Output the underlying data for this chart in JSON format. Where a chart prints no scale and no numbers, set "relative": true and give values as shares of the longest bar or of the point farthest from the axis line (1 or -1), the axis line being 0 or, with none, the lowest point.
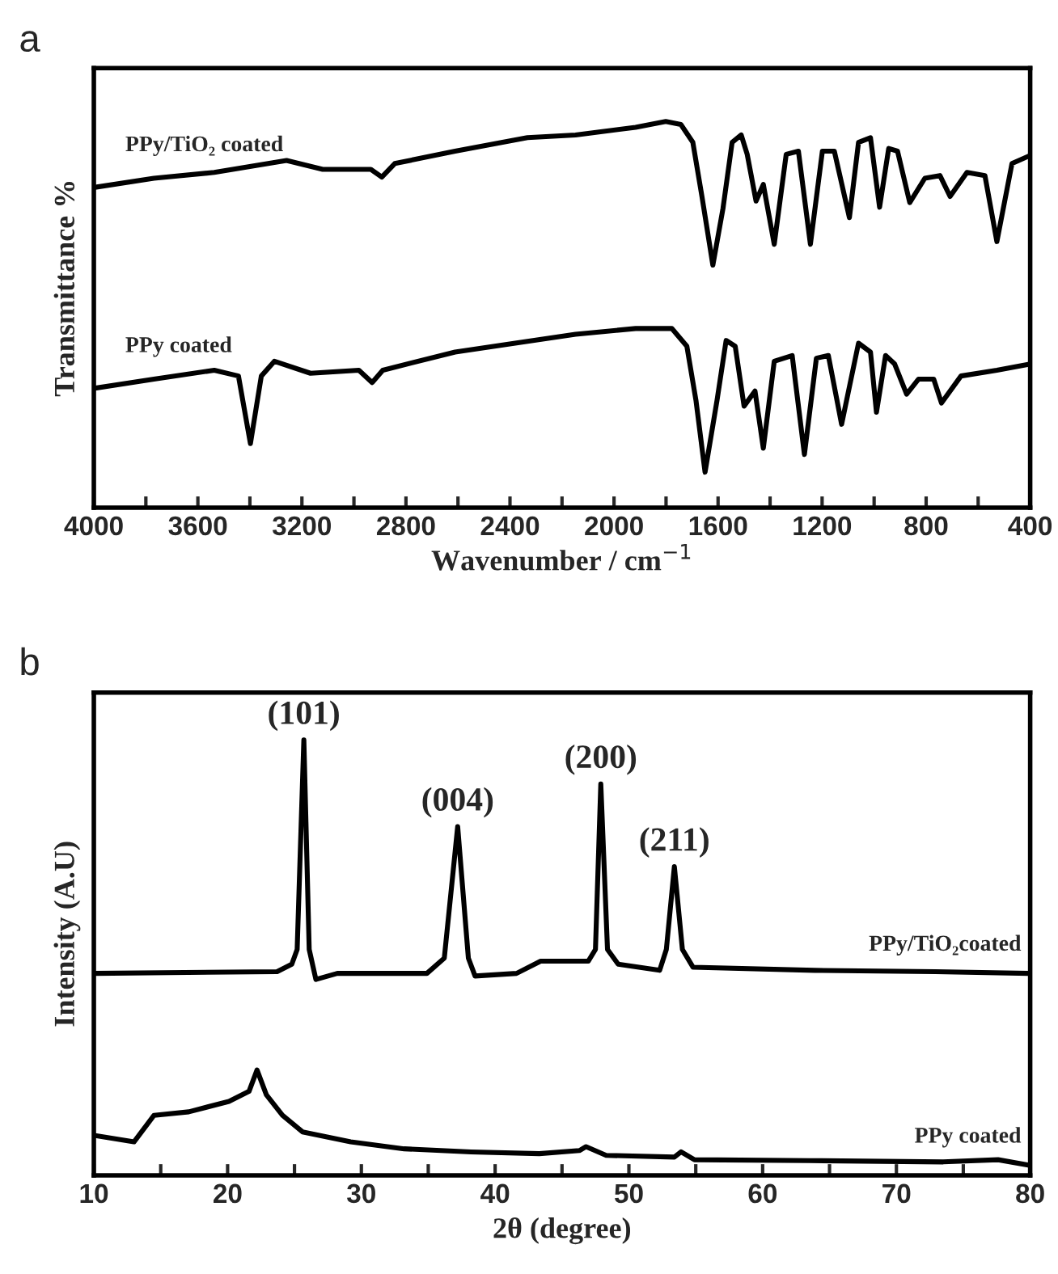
{
  "chart_data": [
    {
      "type": "line",
      "title": "a",
      "xlabel": "Wavenumber / cm$^{−1}$",
      "ylabel": "Transmittance %",
      "relative": true,
      "tick_labels": "x",
      "grid": false,
      "legend": false,
      "marker": "none",
      "line_style": "solid",
      "xlim": [
        4000,
        400
      ],
      "xticks": [
        4000,
        {
          "value": 3800,
          "label": null
        },
        3600,
        {
          "value": 3400,
          "label": null
        },
        3200,
        {
          "value": 3000,
          "label": null
        },
        2800,
        {
          "value": 2600,
          "label": null
        },
        2400,
        {
          "value": 2200,
          "label": null
        },
        2000,
        {
          "value": 1800,
          "label": null
        },
        1600,
        {
          "value": 1400,
          "label": null
        },
        1200,
        {
          "value": 1000,
          "label": null
        },
        800,
        {
          "value": 600,
          "label": null
        },
        400
      ],
      "series": [
        {
          "name": "PPy/TiO₂ coated",
          "color": "#000000",
          "x": [
            4000,
            3769,
            3537,
            3259,
            3120,
            2935,
            2893,
            2843,
            2611,
            2333,
            2148,
            1917,
            1801,
            1743,
            1697,
            1662,
            1620,
            1581,
            1546,
            1511,
            1488,
            1454,
            1426,
            1384,
            1338,
            1291,
            1245,
            1199,
            1153,
            1095,
            1060,
            1014,
            979,
            944,
            910,
            863,
            805,
            747,
            708,
            643,
            574,
            528,
            470,
            400
          ],
          "values": [
            0.829,
            0.853,
            0.868,
            0.899,
            0.876,
            0.876,
            0.856,
            0.891,
            0.923,
            0.958,
            0.965,
            0.985,
            1.0,
            0.992,
            0.946,
            0.806,
            0.628,
            0.775,
            0.946,
            0.965,
            0.915,
            0.794,
            0.837,
            0.682,
            0.915,
            0.923,
            0.682,
            0.923,
            0.923,
            0.751,
            0.946,
            0.958,
            0.778,
            0.93,
            0.923,
            0.79,
            0.853,
            0.86,
            0.806,
            0.868,
            0.86,
            0.689,
            0.891,
            0.912
          ]
        },
        {
          "name": "PPy coated",
          "color": "#000000",
          "x": [
            4000,
            3769,
            3537,
            3444,
            3398,
            3356,
            3306,
            3167,
            2981,
            2930,
            2889,
            2611,
            2380,
            2148,
            1917,
            1778,
            1720,
            1685,
            1650,
            1604,
            1569,
            1534,
            1500,
            1458,
            1426,
            1384,
            1315,
            1268,
            1222,
            1176,
            1125,
            1060,
            1014,
            991,
            956,
            921,
            875,
            829,
            771,
            741,
            666,
            528,
            400
          ],
          "values": [
            0.309,
            0.333,
            0.356,
            0.341,
            0.166,
            0.341,
            0.379,
            0.348,
            0.356,
            0.324,
            0.356,
            0.403,
            0.426,
            0.449,
            0.464,
            0.464,
            0.418,
            0.278,
            0.092,
            0.278,
            0.433,
            0.418,
            0.263,
            0.302,
            0.154,
            0.379,
            0.394,
            0.138,
            0.387,
            0.394,
            0.216,
            0.426,
            0.403,
            0.247,
            0.394,
            0.372,
            0.294,
            0.333,
            0.333,
            0.271,
            0.341,
            0.356,
            0.372
          ]
        }
      ]
    },
    {
      "type": "line",
      "title": "b",
      "xlabel": "2θ (degree)",
      "ylabel": "Intensity (A.U)",
      "relative": true,
      "tick_labels": "x",
      "grid": false,
      "legend": false,
      "marker": "none",
      "line_style": "solid",
      "xlim": [
        10,
        80
      ],
      "xticks": [
        10,
        {
          "value": 15,
          "label": null
        },
        20,
        {
          "value": 25,
          "label": null
        },
        30,
        {
          "value": 35,
          "label": null
        },
        40,
        {
          "value": 45,
          "label": null
        },
        50,
        {
          "value": 55,
          "label": null
        },
        60,
        {
          "value": 65,
          "label": null
        },
        70,
        {
          "value": 75,
          "label": null
        },
        80
      ],
      "annotations": [
        {
          "text": "(101)",
          "x": 25.7,
          "y": 1.0
        },
        {
          "text": "(004)",
          "x": 37.2,
          "y": 0.801
        },
        {
          "text": "(200)",
          "x": 47.9,
          "y": 0.899
        },
        {
          "text": "(211)",
          "x": 53.4,
          "y": 0.709
        }
      ],
      "series": [
        {
          "name": "PPy/TiO₂coated",
          "color": "#000000",
          "x": [
            10,
            23.7,
            24.8,
            25.2,
            25.7,
            26.1,
            26.6,
            28.2,
            34.9,
            36.2,
            37.2,
            38.0,
            38.5,
            41.6,
            43.4,
            46.96,
            47.5,
            47.9,
            48.4,
            49.2,
            52.3,
            52.8,
            53.4,
            54.0,
            54.8,
            63.9,
            72.9,
            80
          ],
          "values": [
            0.464,
            0.468,
            0.485,
            0.519,
            1.0,
            0.519,
            0.45,
            0.464,
            0.464,
            0.499,
            0.801,
            0.499,
            0.458,
            0.464,
            0.492,
            0.492,
            0.519,
            0.899,
            0.519,
            0.485,
            0.471,
            0.519,
            0.709,
            0.519,
            0.478,
            0.471,
            0.468,
            0.464
          ]
        },
        {
          "name": "PPy coated",
          "color": "#000000",
          "x": [
            10,
            13.0,
            14.5,
            17.1,
            20.1,
            21.6,
            22.2,
            22.9,
            24.1,
            25.6,
            29.2,
            33.2,
            38.2,
            43.3,
            46.3,
            46.8,
            48.3,
            53.4,
            53.9,
            54.9,
            63.5,
            73.5,
            77.6,
            80
          ],
          "values": [
            0.092,
            0.077,
            0.138,
            0.146,
            0.17,
            0.193,
            0.242,
            0.185,
            0.138,
            0.1,
            0.077,
            0.061,
            0.054,
            0.05,
            0.057,
            0.066,
            0.046,
            0.042,
            0.054,
            0.036,
            0.034,
            0.031,
            0.036,
            0.023
          ]
        }
      ]
    }
  ]
}
